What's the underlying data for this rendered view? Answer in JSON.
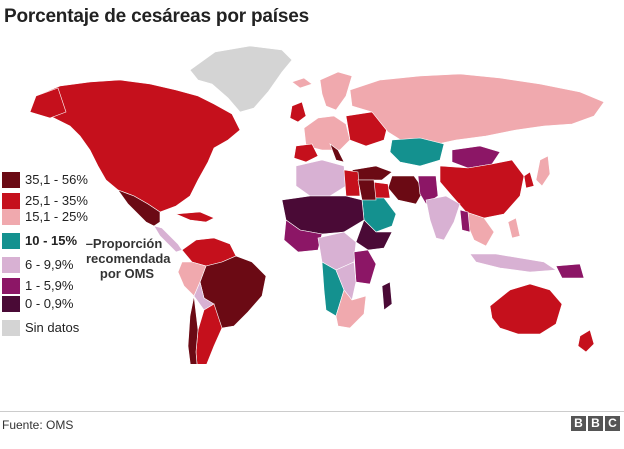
{
  "header": {
    "title": "Porcentaje de cesáreas por países"
  },
  "colors": {
    "c35_56": "#6b0a14",
    "c25_35": "#c5101c",
    "c15_25": "#f0a9ae",
    "c10_15": "#14918f",
    "c6_10": "#d8b1d3",
    "c1_6": "#8c1666",
    "c0_1": "#4a0a36",
    "nodata": "#d4d4d4"
  },
  "legend": {
    "items": [
      {
        "label": "35,1 - 56%",
        "color": "#6b0a14"
      },
      {
        "label": "25,1 - 35%",
        "color": "#c5101c"
      },
      {
        "label": "15,1 - 25%",
        "color": "#f0a9ae"
      },
      {
        "label": "10 - 15%",
        "color": "#14918f",
        "bold": true
      },
      {
        "label": "6 - 9,9%",
        "color": "#d8b1d3"
      },
      {
        "label": "1 - 5,9%",
        "color": "#8c1666"
      },
      {
        "label": "0 - 0,9%",
        "color": "#4a0a36"
      },
      {
        "label": "Sin datos",
        "color": "#d4d4d4"
      }
    ],
    "annotation": [
      "–Proporción",
      "recomendada",
      "por OMS"
    ]
  },
  "footer": {
    "source": "Fuente: OMS",
    "logo": [
      "B",
      "B",
      "C"
    ]
  }
}
